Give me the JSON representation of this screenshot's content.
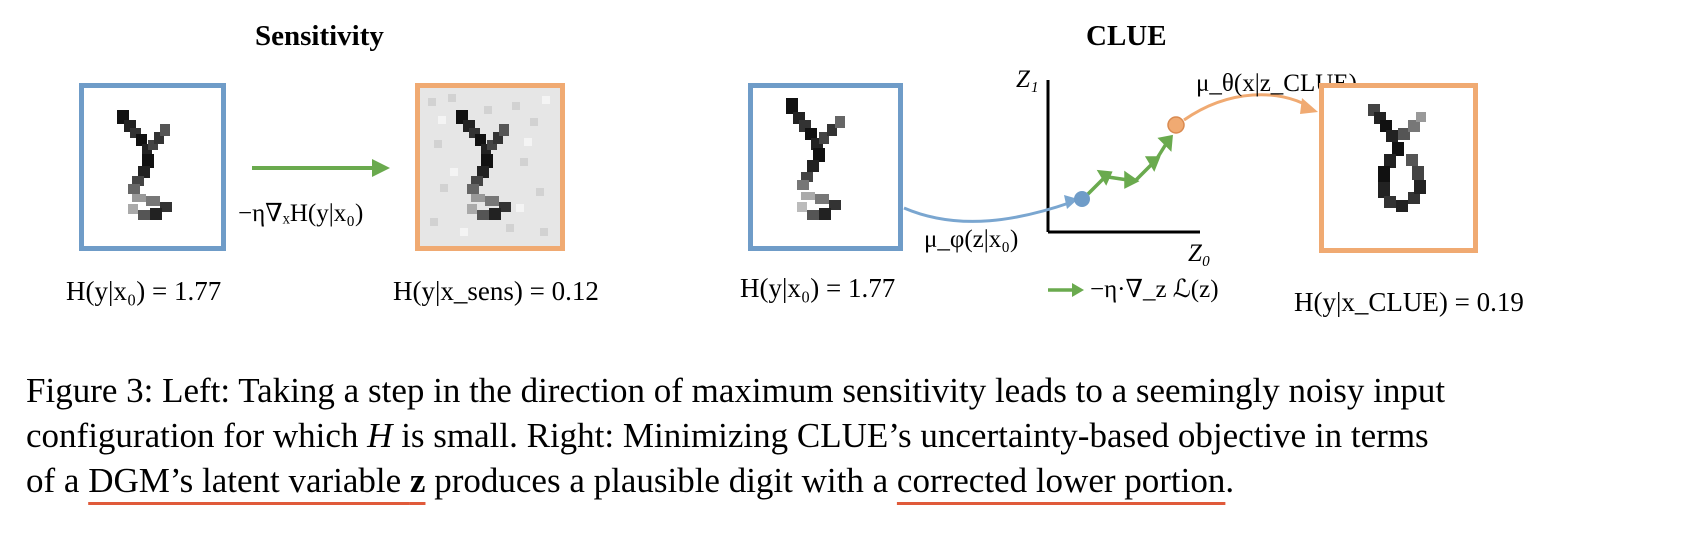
{
  "left_panel": {
    "title": "Sensitivity",
    "step_label": "−η∇ₓH(y|x₀)",
    "original_entropy": "H(y|x₀) = 1.77",
    "sens_entropy": "H(y|x_sens) = 0.12"
  },
  "right_panel": {
    "title": "CLUE",
    "encoder_label": "μ_φ(z|x₀)",
    "decoder_label": "μ_θ(x|z_CLUE)",
    "axis_z1": "Z₁",
    "axis_z0": "Z₀",
    "legend_step": "−η·∇_z ℒ(z)",
    "original_entropy": "H(y|x₀) = 1.77",
    "clue_entropy": "H(y|x_CLUE) = 0.19"
  },
  "caption": {
    "line1": "Figure 3: Left: Taking a step in the direction of maximum sensitivity leads to a seemingly noisy input",
    "line2a": "configuration for which ",
    "line2_var": "H",
    "line2b": " is small. Right: Minimizing CLUE’s uncertainty-based objective in terms",
    "line3a": "of a ",
    "line3_u1": "DGM’s latent variable ",
    "line3_u1_var": "z",
    "line3b": " produces a plausible digit with a ",
    "line3_u2": "corrected lower portion",
    "line3c": "."
  },
  "colors": {
    "blue_box": "#6f9cc8",
    "orange_box": "#f0aa72",
    "green_arrow": "#6aaa4e",
    "underline": "#e05a3a"
  }
}
